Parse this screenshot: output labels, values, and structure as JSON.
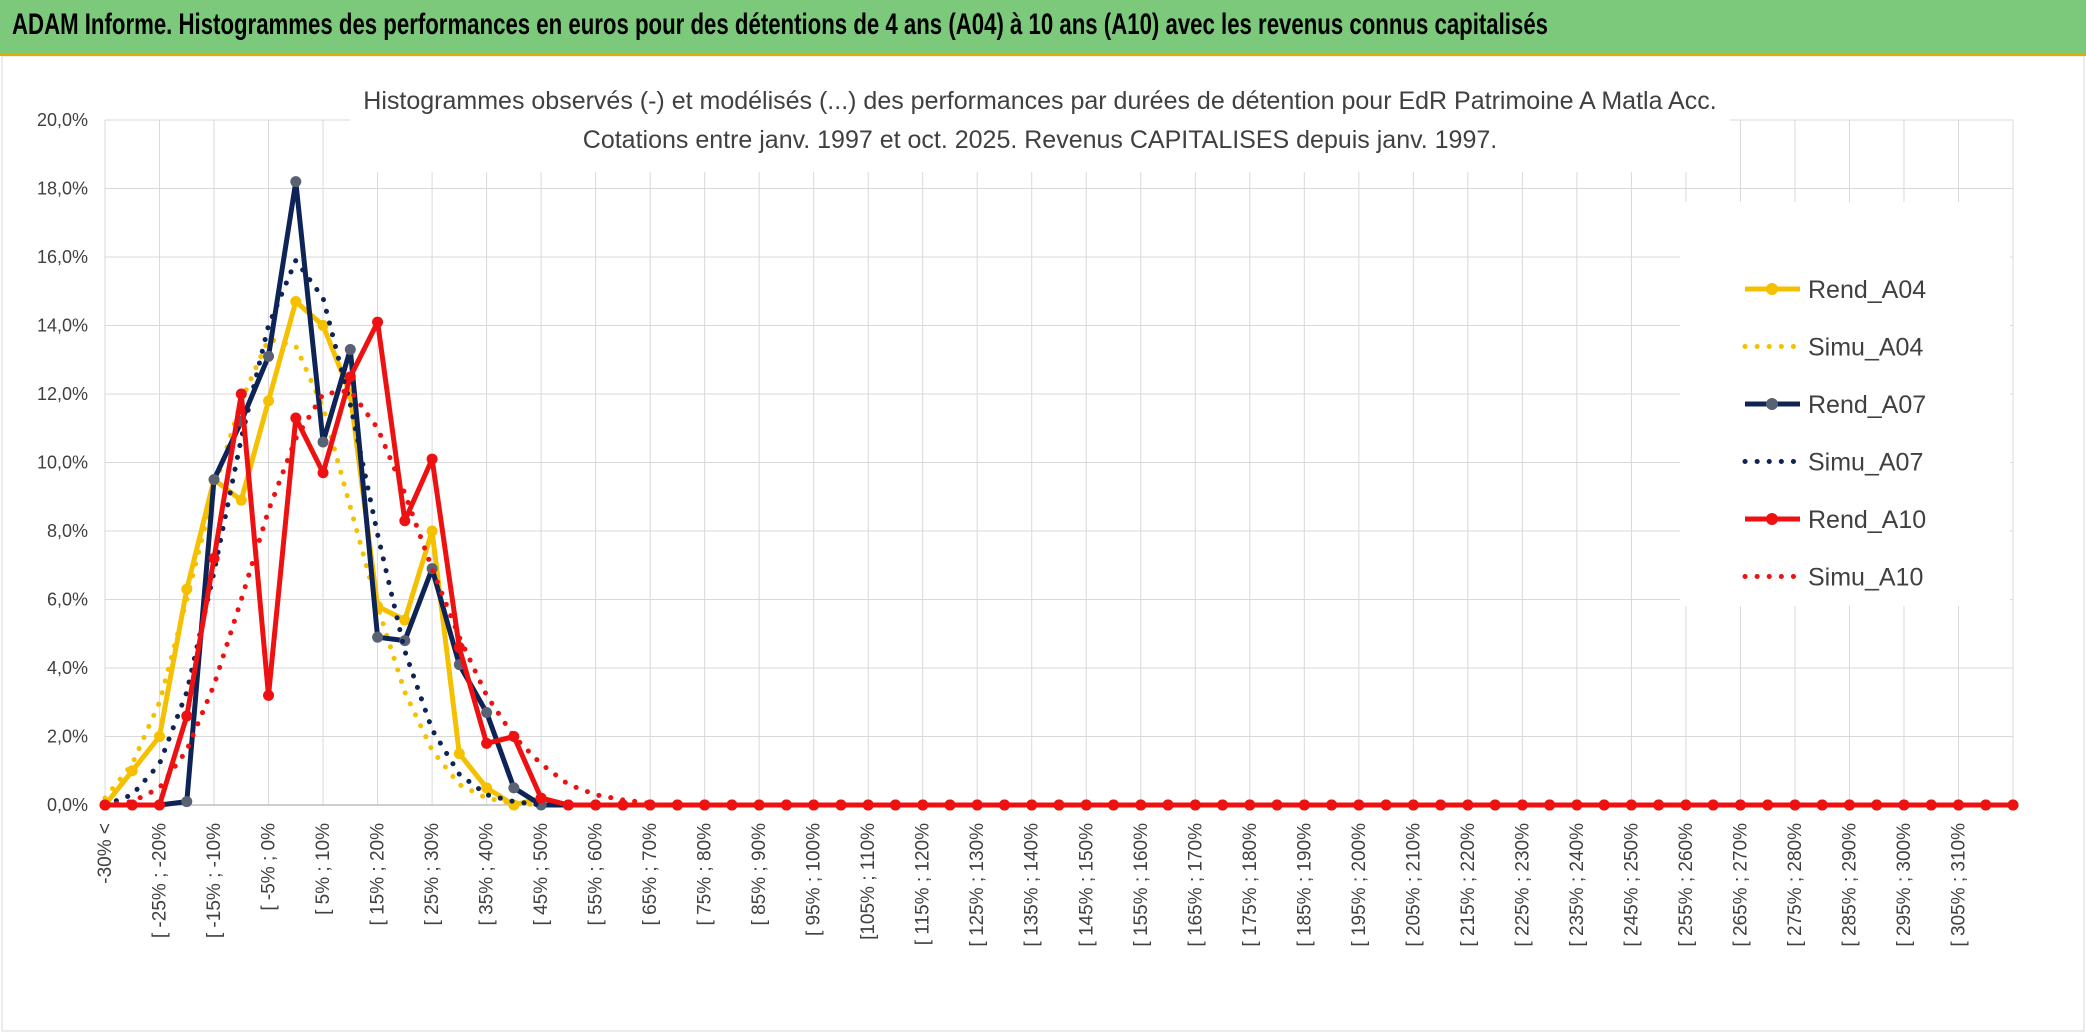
{
  "header": {
    "title": "ADAM Informe. Histogrammes des performances en euros pour des détentions de 4 ans (A04) à 10 ans (A10) avec les revenus connus capitalisés",
    "background": "#7cc97c"
  },
  "chart_data": {
    "type": "line",
    "title": "Histogrammes observés (-) et modélisés (...) des performances par durées de détention pour EdR Patrimoine A Matla Acc.",
    "subtitle": "Cotations entre janv. 1997 et oct. 2025. Revenus CAPITALISES depuis janv. 1997.",
    "xlabel": "",
    "ylabel": "",
    "y_tick_labels": [
      "0,0%",
      "2,0%",
      "4,0%",
      "6,0%",
      "8,0%",
      "10,0%",
      "12,0%",
      "14,0%",
      "16,0%",
      "18,0%",
      "20,0%"
    ],
    "ylim": [
      0,
      20
    ],
    "grid": true,
    "legend_position": "right",
    "x_tick_labels": [
      "-30% <",
      "[ -25% ; -20%",
      "[ -15% ; -10%",
      "[ -5% ; 0%",
      "[ 5% ; 10%",
      "[ 15% ; 20%",
      "[ 25% ; 30%",
      "[ 35% ; 40%",
      "[ 45% ; 50%",
      "[ 55% ; 60%",
      "[ 65% ; 70%",
      "[ 75% ; 80%",
      "[ 85% ; 90%",
      "[ 95% ; 100%",
      "[105% ; 110%",
      "[ 115% ; 120%",
      "[ 125% ; 130%",
      "[ 135% ; 140%",
      "[ 145% ; 150%",
      "[ 155% ; 160%",
      "[ 165% ; 170%",
      "[ 175% ; 180%",
      "[ 185% ; 190%",
      "[ 195% ; 200%",
      "[ 205% ; 210%",
      "[ 215% ; 220%",
      "[ 225% ; 230%",
      "[ 235% ; 240%",
      "[ 245% ; 250%",
      "[ 255% ; 260%",
      "[ 265% ; 270%",
      "[ 275% ; 280%",
      "[ 285% ; 290%",
      "[ 295% ; 300%",
      "[ 305% ; 310%"
    ],
    "series": [
      {
        "name": "Rend_A04",
        "color": "#f5c000",
        "style": "solid-markers",
        "values": [
          0,
          1.0,
          2.0,
          6.3,
          9.5,
          8.9,
          11.8,
          14.7,
          14.0,
          12.0,
          5.8,
          5.4,
          8.0,
          1.5,
          0.5,
          0.0,
          0.2,
          0.0
        ]
      },
      {
        "name": "Simu_A04",
        "color": "#f5c000",
        "style": "dotted",
        "values": [
          0.2,
          1.2,
          3.0,
          6.0,
          9.2,
          11.8,
          13.6,
          13.4,
          11.6,
          8.7,
          5.8,
          3.3,
          1.6,
          0.6,
          0.2,
          0.05,
          0.0
        ]
      },
      {
        "name": "Rend_A07",
        "color": "#0e2356",
        "style": "solid-markers",
        "values": [
          0,
          0,
          0,
          0.1,
          9.5,
          11.2,
          13.1,
          18.2,
          10.6,
          13.3,
          4.9,
          4.8,
          6.9,
          4.1,
          2.7,
          0.5,
          0.0
        ]
      },
      {
        "name": "Simu_A07",
        "color": "#0e2356",
        "style": "dotted",
        "values": [
          0,
          0.3,
          1.2,
          3.3,
          6.8,
          10.7,
          14.0,
          15.9,
          14.8,
          11.7,
          7.9,
          4.5,
          2.2,
          0.9,
          0.3,
          0.1,
          0.0
        ]
      },
      {
        "name": "Rend_A10",
        "color": "#ee1111",
        "style": "solid-markers",
        "values": [
          0,
          0,
          0,
          2.6,
          7.2,
          12.0,
          3.2,
          11.3,
          9.7,
          12.5,
          14.1,
          8.3,
          10.1,
          4.6,
          1.8,
          2.0,
          0.2,
          0.0
        ]
      },
      {
        "name": "Simu_A10",
        "color": "#ee1111",
        "style": "dotted",
        "values": [
          0,
          0.1,
          0.5,
          1.6,
          3.5,
          6.0,
          8.6,
          10.7,
          12.0,
          12.1,
          11.0,
          9.1,
          6.9,
          4.9,
          3.2,
          2.0,
          1.2,
          0.6,
          0.3,
          0.15,
          0.05
        ]
      }
    ]
  }
}
